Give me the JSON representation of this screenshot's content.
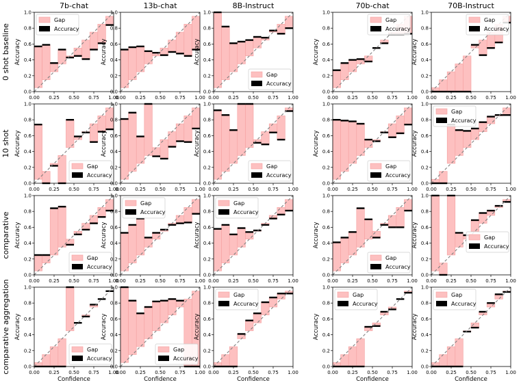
{
  "figure": {
    "columns": [
      "7b-chat",
      "13b-chat",
      "8B-Instruct",
      "70b-chat",
      "70B-Instruct"
    ],
    "rows": [
      "0 shot baseline",
      "10 shot",
      "comparative",
      "comparative aggregation"
    ],
    "xlabel": "Confidence",
    "ylabel": "Accuracy",
    "legend": [
      "Gap",
      "Accuracy"
    ],
    "ticks": [
      "0.00",
      "0.25",
      "0.50",
      "0.75",
      "1.00"
    ],
    "yticks": [
      "0.0",
      "0.2",
      "0.4",
      "0.6",
      "0.8",
      "1.0"
    ],
    "colors": {
      "gap_fill": "#fdc0c0",
      "gap_edge": "#f4a0a0",
      "accuracy": "#000000",
      "diagonal": "#808080"
    }
  },
  "chart_data": [
    {
      "type": "bar",
      "row": "0 shot baseline",
      "model": "7b-chat",
      "legend_loc": "upper-left",
      "bins": [
        0.05,
        0.15,
        0.25,
        0.35,
        0.45,
        0.55,
        0.65,
        0.75,
        0.85,
        0.95
      ],
      "accuracy": [
        0.57,
        0.59,
        0.36,
        0.53,
        0.43,
        0.45,
        0.41,
        0.53,
        0.61,
        0.84
      ],
      "xlim": [
        0,
        1
      ],
      "ylim": [
        0,
        1
      ]
    },
    {
      "type": "bar",
      "row": "0 shot baseline",
      "model": "13b-chat",
      "legend_loc": "none",
      "bins": [
        0.05,
        0.15,
        0.25,
        0.35,
        0.45,
        0.55,
        0.65,
        0.75,
        0.85,
        0.95
      ],
      "accuracy": [
        0.53,
        0.56,
        0.57,
        0.51,
        0.49,
        0.46,
        0.5,
        0.48,
        0.45,
        0.53
      ],
      "xlim": [
        0,
        1
      ],
      "ylim": [
        0,
        1
      ]
    },
    {
      "type": "bar",
      "row": "0 shot baseline",
      "model": "8B-Instruct",
      "legend_loc": "lower-right",
      "bins": [
        0.05,
        0.15,
        0.25,
        0.35,
        0.45,
        0.55,
        0.65,
        0.75,
        0.85,
        0.95
      ],
      "accuracy": [
        1.0,
        0.82,
        0.61,
        0.63,
        0.65,
        0.69,
        0.68,
        0.77,
        0.73,
        0.8
      ],
      "xlim": [
        0,
        1
      ],
      "ylim": [
        0,
        1
      ]
    },
    {
      "type": "bar",
      "row": "0 shot baseline",
      "model": "70b-chat",
      "legend_loc": "upper-right",
      "bins": [
        0.05,
        0.15,
        0.25,
        0.35,
        0.45,
        0.55,
        0.65,
        0.75,
        0.85,
        0.95
      ],
      "accuracy": [
        0.27,
        0.36,
        0.4,
        0.41,
        0.38,
        0.55,
        0.61,
        0.72,
        0.72,
        0.73
      ],
      "xlim": [
        0,
        1
      ],
      "ylim": [
        0,
        1
      ]
    },
    {
      "type": "bar",
      "row": "0 shot baseline",
      "model": "70B-Instruct",
      "legend_loc": "upper-right",
      "bins": [
        0.05,
        0.15,
        0.25,
        0.35,
        0.45,
        0.55,
        0.65,
        0.75,
        0.85,
        0.95
      ],
      "accuracy": [
        0.0,
        0.0,
        0.0,
        0.0,
        0.0,
        0.59,
        0.46,
        0.55,
        0.62,
        0.87
      ],
      "xlim": [
        0,
        1
      ],
      "ylim": [
        0,
        1
      ]
    },
    {
      "type": "bar",
      "row": "10 shot",
      "model": "7b-chat",
      "legend_loc": "lower-right",
      "bins": [
        0.05,
        0.15,
        0.25,
        0.35,
        0.45,
        0.55,
        0.65,
        0.75,
        0.85,
        0.95
      ],
      "accuracy": [
        0.74,
        0.0,
        0.22,
        0.0,
        0.8,
        0.59,
        0.64,
        0.52,
        0.65,
        0.68
      ],
      "xlim": [
        0,
        1
      ],
      "ylim": [
        0,
        1
      ]
    },
    {
      "type": "bar",
      "row": "10 shot",
      "model": "13b-chat",
      "legend_loc": "none",
      "bins": [
        0.05,
        0.15,
        0.25,
        0.35,
        0.45,
        0.55,
        0.65,
        0.75,
        0.85,
        0.95
      ],
      "accuracy": [
        0.81,
        0.89,
        0.59,
        1.0,
        0.34,
        0.31,
        0.46,
        0.53,
        0.52,
        0.69
      ],
      "xlim": [
        0,
        1
      ],
      "ylim": [
        0,
        1
      ]
    },
    {
      "type": "bar",
      "row": "10 shot",
      "model": "8B-Instruct",
      "legend_loc": "lower-right",
      "bins": [
        0.05,
        0.15,
        0.25,
        0.35,
        0.45,
        0.55,
        0.65,
        0.75,
        0.85,
        0.95
      ],
      "accuracy": [
        0.92,
        0.86,
        0.67,
        1.0,
        1.0,
        0.51,
        0.49,
        0.64,
        0.55,
        0.91
      ],
      "xlim": [
        0,
        1
      ],
      "ylim": [
        0,
        1
      ]
    },
    {
      "type": "bar",
      "row": "10 shot",
      "model": "70b-chat",
      "legend_loc": "lower-right",
      "bins": [
        0.05,
        0.15,
        0.25,
        0.35,
        0.45,
        0.55,
        0.65,
        0.75,
        0.85,
        0.95
      ],
      "accuracy": [
        0.8,
        0.79,
        0.78,
        0.75,
        0.55,
        0.53,
        0.64,
        0.58,
        0.63,
        0.74
      ],
      "xlim": [
        0,
        1
      ],
      "ylim": [
        0,
        1
      ]
    },
    {
      "type": "bar",
      "row": "10 shot",
      "model": "70B-Instruct",
      "legend_loc": "upper-left",
      "bins": [
        0.05,
        0.15,
        0.25,
        0.35,
        0.45,
        0.55,
        0.65,
        0.75,
        0.85,
        0.95
      ],
      "accuracy": [
        0.0,
        0.0,
        0.74,
        0.67,
        0.66,
        0.69,
        0.77,
        0.84,
        0.86,
        0.86
      ],
      "xlim": [
        0,
        1
      ],
      "ylim": [
        0,
        1
      ]
    },
    {
      "type": "bar",
      "row": "comparative",
      "model": "7b-chat",
      "legend_loc": "lower-right",
      "bins": [
        0.05,
        0.15,
        0.25,
        0.35,
        0.45,
        0.55,
        0.65,
        0.75,
        0.85,
        0.95
      ],
      "accuracy": [
        0.25,
        0.25,
        0.84,
        0.86,
        0.38,
        0.51,
        0.57,
        0.65,
        0.73,
        0.81
      ],
      "xlim": [
        0,
        1
      ],
      "ylim": [
        0,
        1
      ]
    },
    {
      "type": "bar",
      "row": "comparative",
      "model": "13b-chat",
      "legend_loc": "upper-left",
      "bins": [
        0.05,
        0.15,
        0.25,
        0.35,
        0.45,
        0.55,
        0.65,
        0.75,
        0.85,
        0.95
      ],
      "accuracy": [
        0.53,
        0.63,
        0.71,
        0.47,
        0.53,
        0.57,
        0.63,
        0.65,
        0.66,
        0.77
      ],
      "xlim": [
        0,
        1
      ],
      "ylim": [
        0,
        1
      ]
    },
    {
      "type": "bar",
      "row": "comparative",
      "model": "8B-Instruct",
      "legend_loc": "upper-left",
      "bins": [
        0.05,
        0.15,
        0.25,
        0.35,
        0.45,
        0.55,
        0.65,
        0.75,
        0.85,
        0.95
      ],
      "accuracy": [
        0.58,
        0.63,
        0.51,
        0.59,
        0.54,
        0.56,
        0.63,
        0.71,
        0.76,
        0.81
      ],
      "xlim": [
        0,
        1
      ],
      "ylim": [
        0,
        1
      ]
    },
    {
      "type": "bar",
      "row": "comparative",
      "model": "70b-chat",
      "legend_loc": "lower-right",
      "bins": [
        0.05,
        0.15,
        0.25,
        0.35,
        0.45,
        0.55,
        0.65,
        0.75,
        0.85,
        0.95
      ],
      "accuracy": [
        0.41,
        0.47,
        0.54,
        0.84,
        0.7,
        0.47,
        0.63,
        0.6,
        0.6,
        0.81
      ],
      "xlim": [
        0,
        1
      ],
      "ylim": [
        0,
        1
      ]
    },
    {
      "type": "bar",
      "row": "comparative",
      "model": "70B-Instruct",
      "legend_loc": "center-right",
      "bins": [
        0.05,
        0.15,
        0.25,
        0.35,
        0.45,
        0.55,
        0.65,
        0.75,
        0.85,
        0.95
      ],
      "accuracy": [
        1.0,
        0.0,
        1.0,
        0.53,
        0.5,
        0.69,
        0.78,
        0.81,
        0.87,
        0.92
      ],
      "xlim": [
        0,
        1
      ],
      "ylim": [
        0,
        1
      ]
    },
    {
      "type": "bar",
      "row": "comparative aggregation",
      "model": "7b-chat",
      "legend_loc": "lower-right",
      "bins": [
        0.05,
        0.15,
        0.25,
        0.35,
        0.45,
        0.55,
        0.65,
        0.75,
        0.85,
        0.95
      ],
      "accuracy": [
        0.0,
        0.0,
        0.0,
        0.0,
        1.0,
        0.55,
        0.63,
        0.78,
        0.85,
        0.95
      ],
      "xlim": [
        0,
        1
      ],
      "ylim": [
        0,
        1
      ]
    },
    {
      "type": "bar",
      "row": "comparative aggregation",
      "model": "13b-chat",
      "legend_loc": "lower-right",
      "bins": [
        0.05,
        0.15,
        0.25,
        0.35,
        0.45,
        0.55,
        0.65,
        0.75,
        0.85,
        0.95
      ],
      "accuracy": [
        1.0,
        0.83,
        0.67,
        0.75,
        0.82,
        0.83,
        0.85,
        0.83,
        0.0,
        0.0
      ],
      "xlim": [
        0,
        1
      ],
      "ylim": [
        0,
        1
      ]
    },
    {
      "type": "bar",
      "row": "comparative aggregation",
      "model": "8B-Instruct",
      "legend_loc": "upper-left",
      "bins": [
        0.05,
        0.15,
        0.25,
        0.35,
        0.45,
        0.55,
        0.65,
        0.75,
        0.85,
        0.95
      ],
      "accuracy": [
        0.0,
        0.0,
        0.0,
        0.41,
        0.58,
        0.67,
        0.81,
        0.87,
        0.92,
        0.92
      ],
      "xlim": [
        0,
        1
      ],
      "ylim": [
        0,
        1
      ]
    },
    {
      "type": "bar",
      "row": "comparative aggregation",
      "model": "70b-chat",
      "legend_loc": "upper-left",
      "bins": [
        0.05,
        0.15,
        0.25,
        0.35,
        0.45,
        0.55,
        0.65,
        0.75,
        0.85,
        0.95
      ],
      "accuracy": [
        0.0,
        0.0,
        0.0,
        0.0,
        0.5,
        0.51,
        0.69,
        0.72,
        0.85,
        0.93
      ],
      "xlim": [
        0,
        1
      ],
      "ylim": [
        0,
        1
      ]
    },
    {
      "type": "bar",
      "row": "comparative aggregation",
      "model": "70B-Instruct",
      "legend_loc": "upper-left",
      "bins": [
        0.05,
        0.15,
        0.25,
        0.35,
        0.45,
        0.55,
        0.65,
        0.75,
        0.85,
        0.95
      ],
      "accuracy": [
        0.0,
        0.0,
        0.0,
        0.0,
        0.44,
        0.49,
        0.69,
        0.8,
        0.91,
        0.94
      ],
      "xlim": [
        0,
        1
      ],
      "ylim": [
        0,
        1
      ]
    }
  ]
}
